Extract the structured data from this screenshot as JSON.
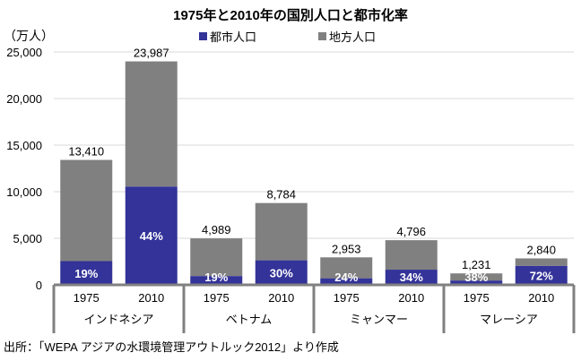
{
  "chart_data": {
    "type": "bar",
    "stacked": true,
    "title": "1975年と2010年の国別人口と都市化率",
    "ylabel": "（万人）",
    "ylim": [
      0,
      25000
    ],
    "yticks": [
      "0",
      "5,000",
      "10,000",
      "15,000",
      "20,000",
      "25,000"
    ],
    "ytick_values": [
      0,
      5000,
      10000,
      15000,
      20000,
      25000
    ],
    "grid": true,
    "legend_placement": "top-center",
    "groups": [
      "インドネシア",
      "ベトナム",
      "ミャンマー",
      "マレーシア"
    ],
    "categories": [
      "1975",
      "2010",
      "1975",
      "2010",
      "1975",
      "2010",
      "1975",
      "2010"
    ],
    "totals": [
      13410,
      23987,
      4989,
      8784,
      2953,
      4796,
      1231,
      2840
    ],
    "total_labels": [
      "13,410",
      "23,987",
      "4,989",
      "8,784",
      "2,953",
      "4,796",
      "1,231",
      "2,840"
    ],
    "urban_rate_labels": [
      "19%",
      "44%",
      "19%",
      "30%",
      "24%",
      "34%",
      "38%",
      "72%"
    ],
    "series": [
      {
        "name": "都市人口",
        "color": "#333399",
        "values": [
          2548,
          10554,
          948,
          2635,
          709,
          1631,
          468,
          2045
        ]
      },
      {
        "name": "地方人口",
        "color": "#808080",
        "values": [
          10862,
          13433,
          4041,
          6149,
          2244,
          3165,
          763,
          795
        ]
      }
    ]
  },
  "source": "出所：「WEPA アジアの水環境管理アウトルック2012」より作成"
}
